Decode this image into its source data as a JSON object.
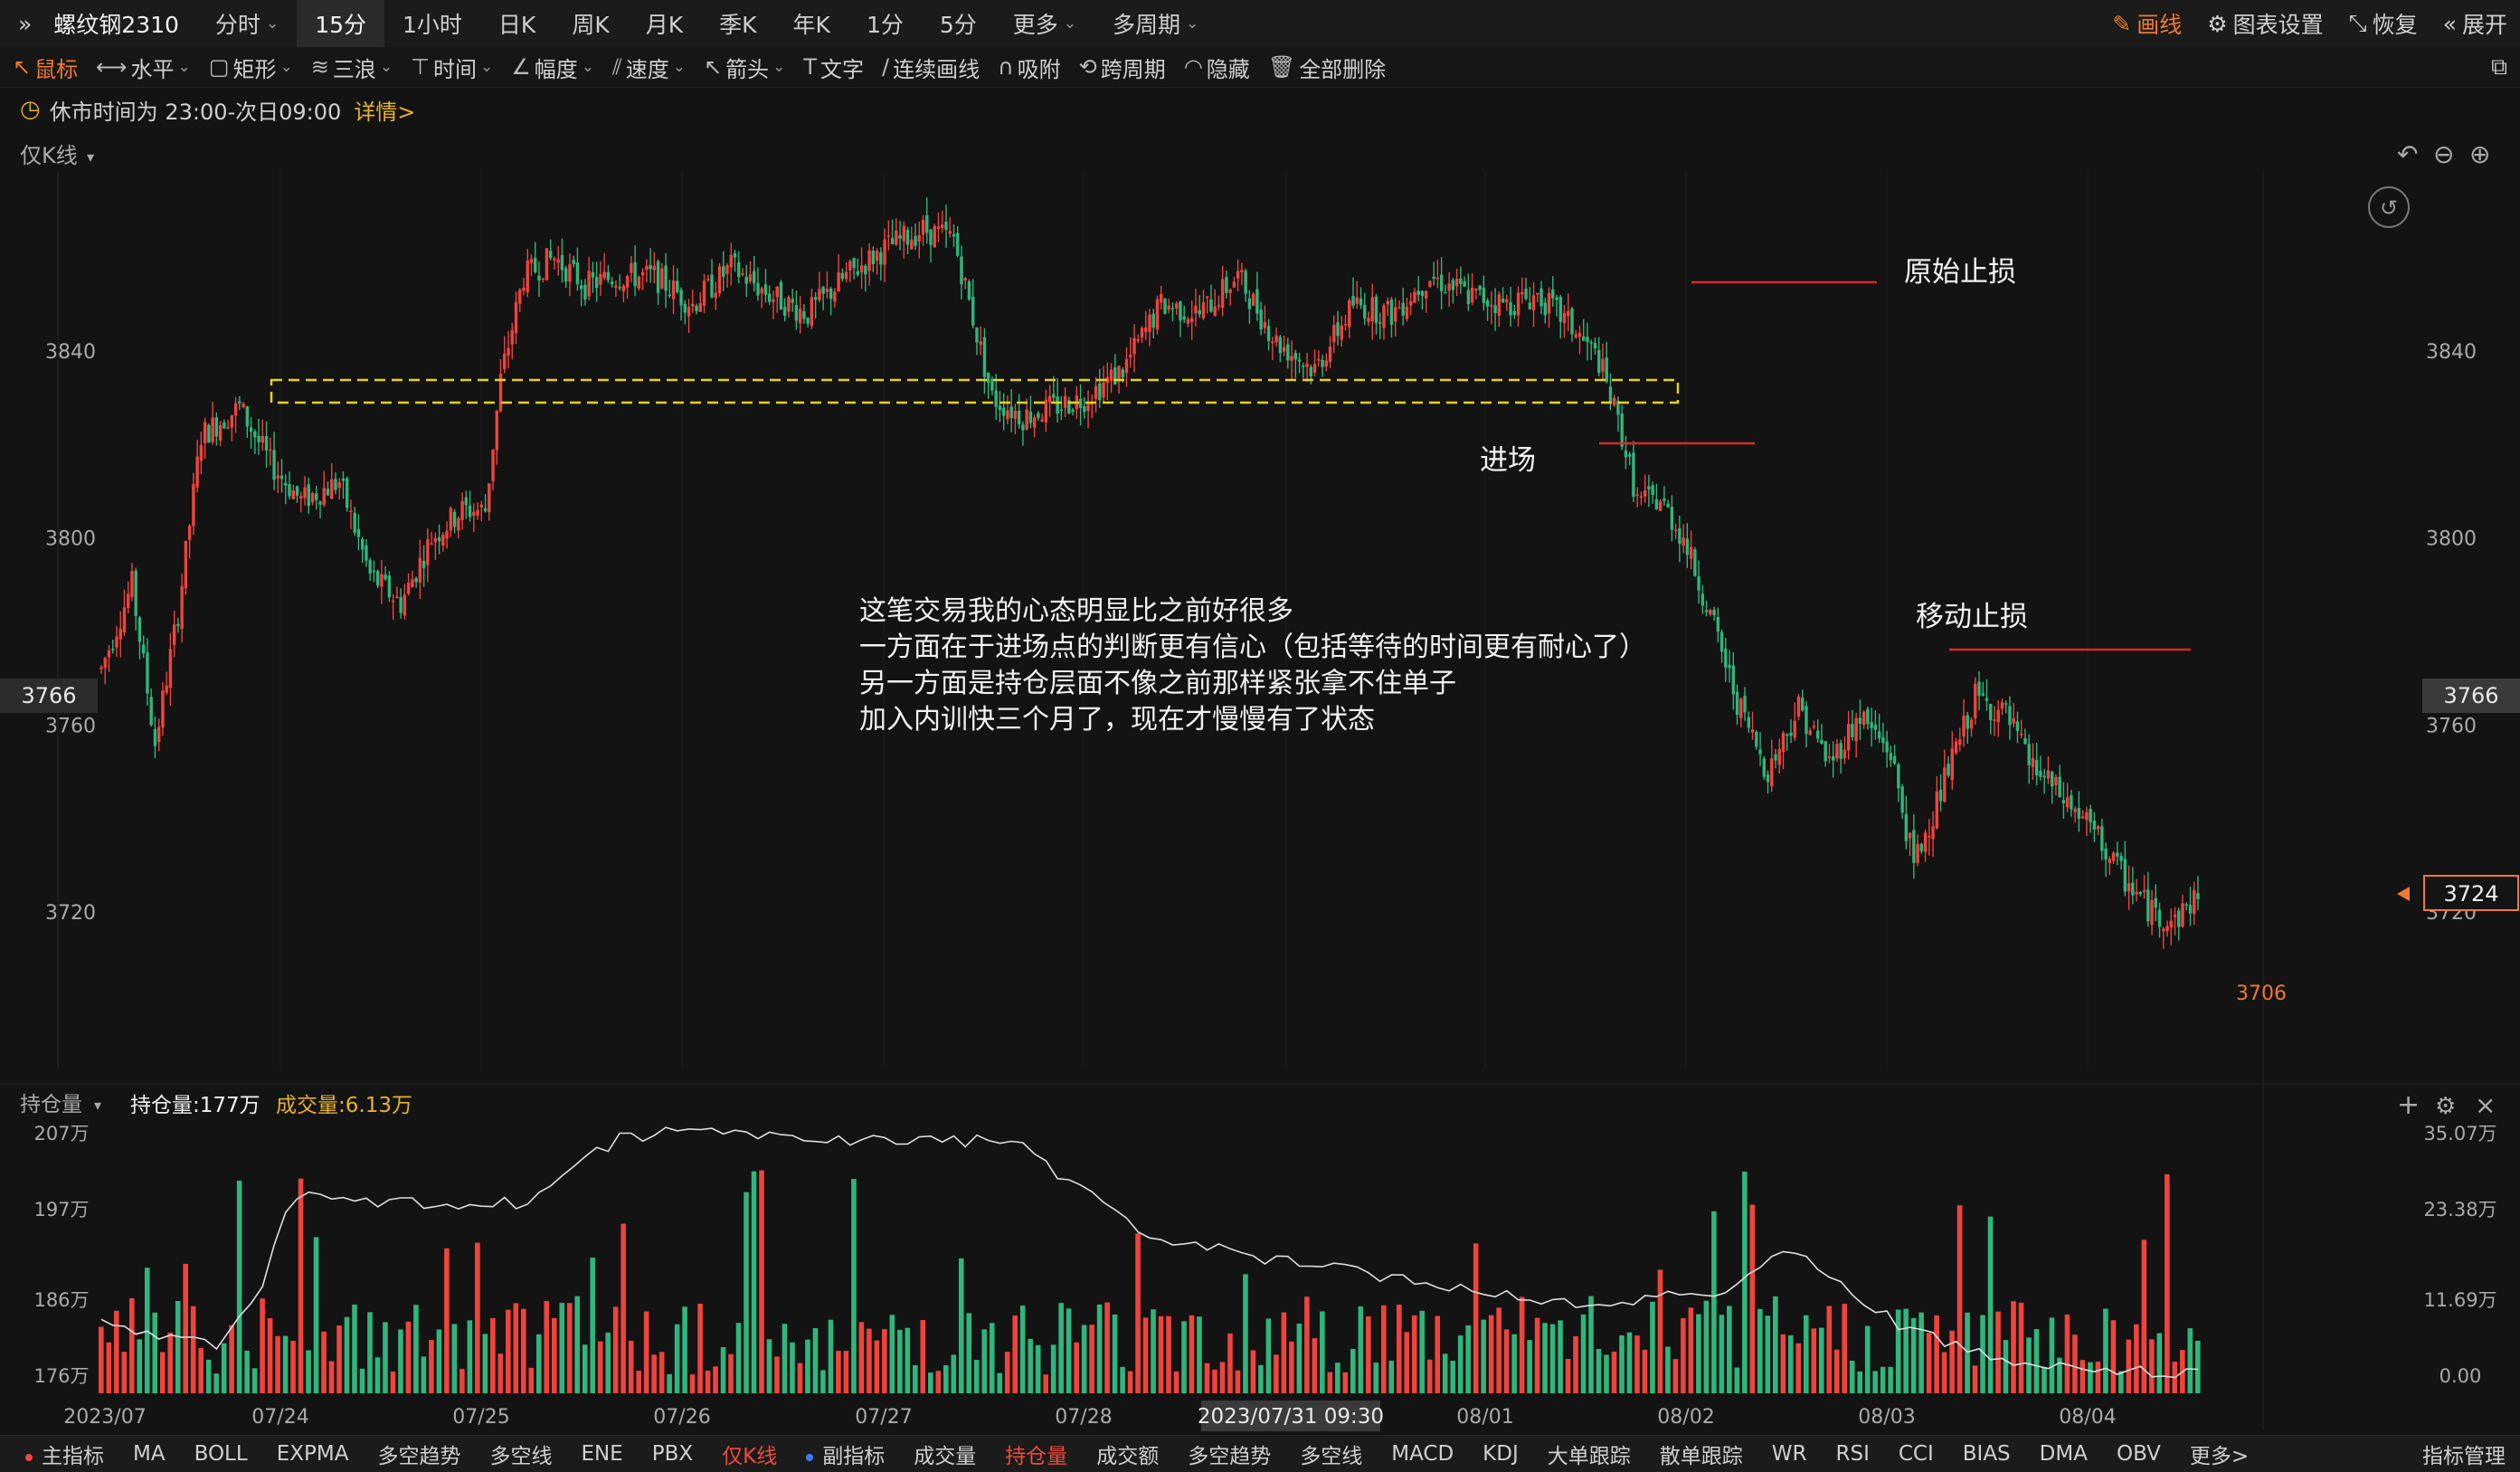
{
  "topbar": {
    "collapse_icon": "double-chevron-right-icon",
    "symbol": "螺纹钢2310",
    "periods": [
      {
        "label": "分时",
        "dropdown": true
      },
      {
        "label": "15分",
        "active": true
      },
      {
        "label": "1小时"
      },
      {
        "label": "日K"
      },
      {
        "label": "周K"
      },
      {
        "label": "月K"
      },
      {
        "label": "季K"
      },
      {
        "label": "年K"
      },
      {
        "label": "1分"
      },
      {
        "label": "5分"
      },
      {
        "label": "更多",
        "dropdown": true
      },
      {
        "label": "多周期",
        "dropdown": true
      }
    ],
    "actions": [
      {
        "label": "画线",
        "icon": "pen-icon"
      },
      {
        "label": "图表设置",
        "icon": "gear-icon"
      },
      {
        "label": "恢复",
        "icon": "restore-icon"
      },
      {
        "label": "展开",
        "icon": "double-chevron-left-icon"
      }
    ]
  },
  "toolbar": {
    "tools": [
      {
        "label": "鼠标",
        "icon": "cursor-icon",
        "active": true
      },
      {
        "label": "水平",
        "icon": "horizontal-line-icon",
        "dropdown": true
      },
      {
        "label": "矩形",
        "icon": "rectangle-icon",
        "dropdown": true
      },
      {
        "label": "三浪",
        "icon": "wave-icon",
        "dropdown": true
      },
      {
        "label": "时间",
        "icon": "time-line-icon",
        "dropdown": true
      },
      {
        "label": "幅度",
        "icon": "amplitude-icon",
        "dropdown": true
      },
      {
        "label": "速度",
        "icon": "speed-icon",
        "dropdown": true
      },
      {
        "label": "箭头",
        "icon": "arrow-icon",
        "dropdown": true
      },
      {
        "label": "文字",
        "icon": "text-icon"
      },
      {
        "label": "连续画线",
        "icon": "continuous-line-icon"
      },
      {
        "label": "吸附",
        "icon": "magnet-icon"
      },
      {
        "label": "跨周期",
        "icon": "cross-period-icon"
      },
      {
        "label": "隐藏",
        "icon": "eye-hidden-icon"
      },
      {
        "label": "全部删除",
        "icon": "trash-icon"
      }
    ],
    "right_icon": "window-icon"
  },
  "notice": {
    "icon": "clock-icon",
    "text": "休市时间为 23:00-次日09:00",
    "link": "详情>"
  },
  "main_chart": {
    "mode_label": "仅K线",
    "y_axis_labels": [
      "3840",
      "3800",
      "3760",
      "3720"
    ],
    "crosshair_price": "3766",
    "last_price": "3724",
    "low_label": "3706",
    "zoom_icons": [
      "undo-icon",
      "zoom-out-icon",
      "zoom-in-icon"
    ],
    "reset_icon": "reset-view-icon",
    "annotations": {
      "stop_original": "原始止损",
      "entry": "进场",
      "stop_moving": "移动止损",
      "note_lines": [
        "这笔交易我的心态明显比之前好很多",
        "一方面在于进场点的判断更有信心（包括等待的时间更有耐心了）",
        "另一方面是持仓层面不像之前那样紧张拿不住单子",
        "加入内训快三个月了，现在才慢慢有了状态"
      ]
    },
    "colors": {
      "up": "#f0433c",
      "down": "#2fb67c",
      "box": "#e8d21a",
      "annotation_line": "#d62a2a"
    }
  },
  "sub_chart": {
    "mode_label": "持仓量",
    "oi_label": "持仓量:177万",
    "vol_label": "成交量:6.13万",
    "left_axis": [
      "207万",
      "197万",
      "186万",
      "176万"
    ],
    "right_axis": [
      "35.07万",
      "23.38万",
      "11.69万",
      "0.00"
    ],
    "icons": [
      "plus-icon",
      "gear-icon",
      "close-icon"
    ]
  },
  "x_axis": {
    "labels": [
      "2023/07",
      "07/24",
      "07/25",
      "07/26",
      "07/27",
      "07/28",
      "08/01",
      "08/02",
      "08/03",
      "08/04"
    ],
    "crosshair_time": "2023/07/31 09:30"
  },
  "bottombar": {
    "items": [
      {
        "label": "主指标",
        "dot": "#f0433c"
      },
      {
        "label": "MA"
      },
      {
        "label": "BOLL"
      },
      {
        "label": "EXPMA"
      },
      {
        "label": "多空趋势"
      },
      {
        "label": "多空线"
      },
      {
        "label": "ENE"
      },
      {
        "label": "PBX"
      },
      {
        "label": "仅K线",
        "active": true
      },
      {
        "label": "副指标",
        "dot": "#3d7bff"
      },
      {
        "label": "成交量"
      },
      {
        "label": "持仓量",
        "active": true
      },
      {
        "label": "成交额"
      },
      {
        "label": "多空趋势"
      },
      {
        "label": "多空线"
      },
      {
        "label": "MACD"
      },
      {
        "label": "KDJ"
      },
      {
        "label": "大单跟踪"
      },
      {
        "label": "散单跟踪"
      },
      {
        "label": "WR"
      },
      {
        "label": "RSI"
      },
      {
        "label": "CCI"
      },
      {
        "label": "BIAS"
      },
      {
        "label": "DMA"
      },
      {
        "label": "OBV"
      },
      {
        "label": "更多>"
      }
    ],
    "manage": "指标管理"
  }
}
